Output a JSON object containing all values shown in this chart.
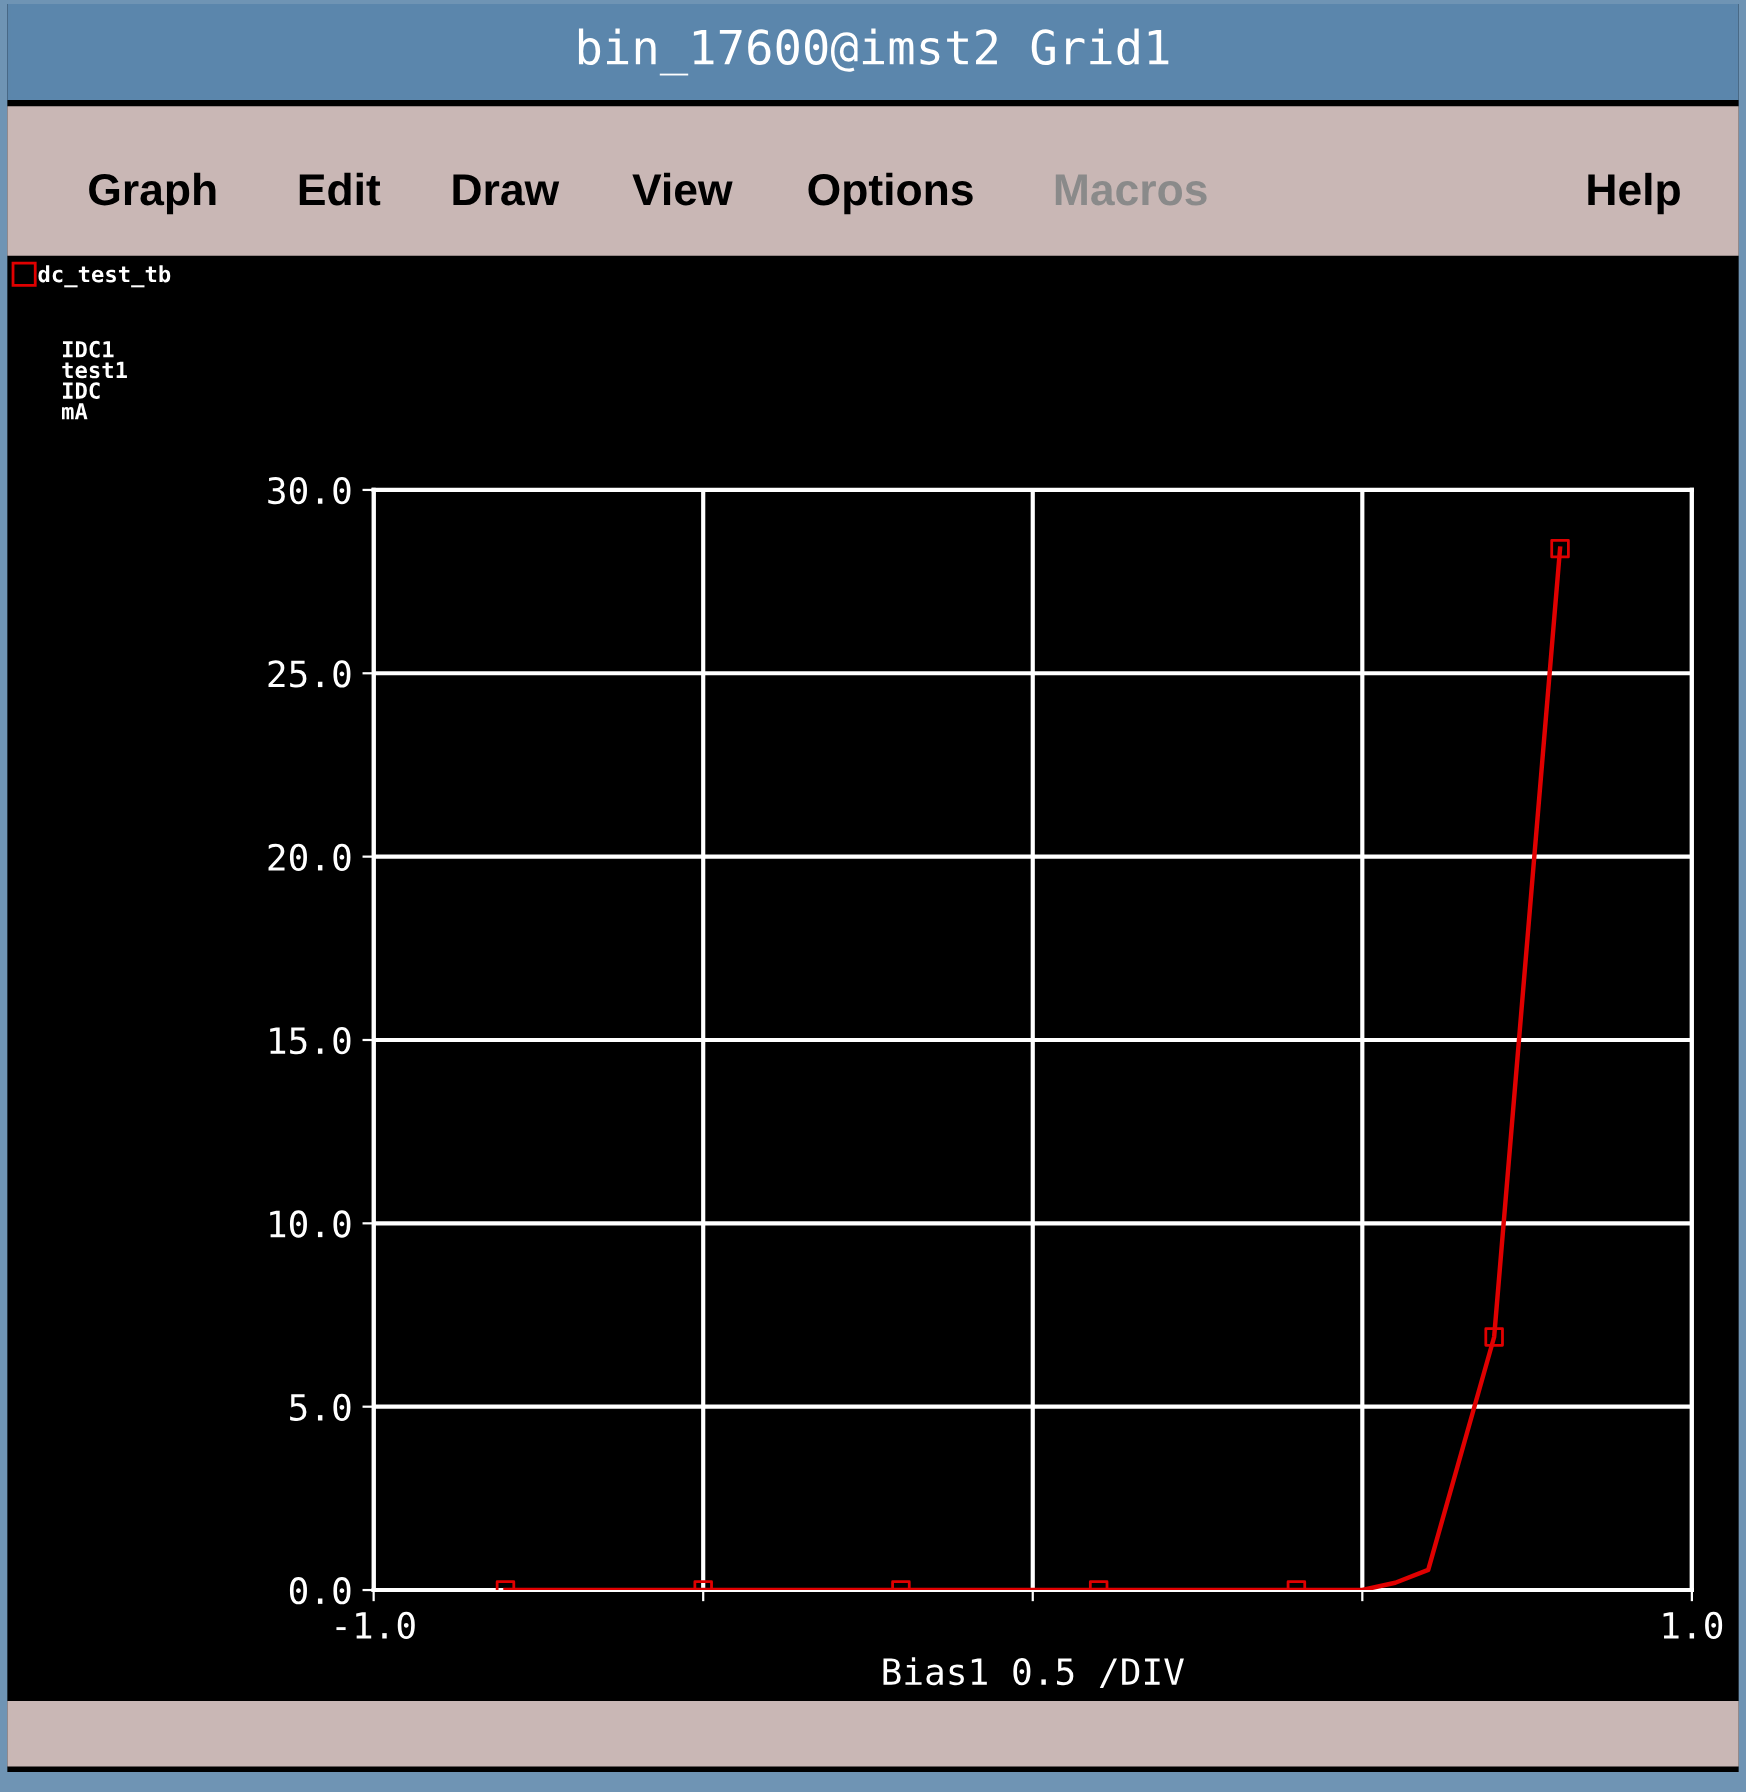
{
  "chart_data": {
    "type": "line",
    "title": "bin_17600@imst2 Grid1",
    "annotations": [
      "Graph",
      "Edit",
      "Draw",
      "View",
      "Options",
      "Macros",
      "Help",
      "IDC1\ntest1\nIDC\nmA"
    ],
    "xlabel": "Bias1 0.5 /DIV",
    "xlim": [
      -1.0,
      1.0
    ],
    "xticks": [
      {
        "value": -1.0,
        "label": "-1.0"
      },
      {
        "value": -0.5,
        "label": null
      },
      {
        "value": 0.0,
        "label": null
      },
      {
        "value": 0.5,
        "label": null
      },
      {
        "value": 1.0,
        "label": "1.0"
      }
    ],
    "ylim": [
      0,
      30
    ],
    "yticks": [
      {
        "value": 0,
        "label": "0.0"
      },
      {
        "value": 5,
        "label": "5.0"
      },
      {
        "value": 10,
        "label": "10.0"
      },
      {
        "value": 15,
        "label": "15.0"
      },
      {
        "value": 20,
        "label": "20.0"
      },
      {
        "value": 25,
        "label": "25.0"
      },
      {
        "value": 30,
        "label": "30.0"
      }
    ],
    "grid": true,
    "legend": "top left",
    "series": [
      {
        "name": "dc_test_tb",
        "color": "#e00000",
        "marker": "none",
        "x": [
          -0.8,
          -0.5,
          -0.2,
          0.1,
          0.4,
          0.5,
          0.55,
          0.6,
          0.7,
          0.8
        ],
        "values": [
          0,
          0,
          0,
          0,
          0,
          0,
          0.2,
          0.55,
          6.9,
          28.4
        ]
      },
      {
        "color": "#e00000",
        "type": "scatter",
        "marker": "square",
        "x": [
          -0.8,
          -0.5,
          -0.2,
          0.1,
          0.4,
          0.7,
          0.8
        ],
        "values": [
          0,
          0,
          0,
          0,
          0,
          6.9,
          28.4
        ]
      }
    ]
  }
}
